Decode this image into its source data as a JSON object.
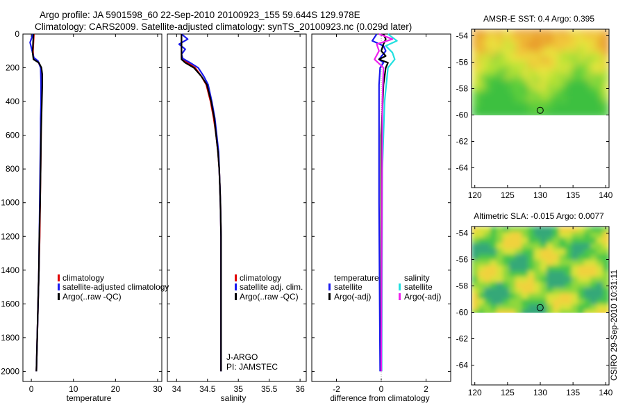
{
  "header": {
    "line1": "Argo profile: JA 5901598_60 22-Sep-2010 20100923_155 59.644S 129.978E",
    "line2": "Climatology: CARS2009. Satellite-adjusted climatology: synTS_20100923.nc (0.029d later)"
  },
  "footer_stamp": "CSIRO 29-Sep-2010 10:31:11",
  "colors": {
    "climatology": "#e00000",
    "satellite": "#1a1aee",
    "argo": "#000000",
    "sal_satellite": "#22e0e0",
    "sal_argo": "#ee22ee"
  },
  "chart_data": [
    {
      "type": "line",
      "name": "temperature-profile",
      "xlabel": "temperature",
      "ylabel": "",
      "xlim": [
        -2,
        31
      ],
      "ylim": [
        2060,
        0
      ],
      "xticks": [
        0,
        10,
        20,
        30
      ],
      "yticks": [
        0,
        200,
        400,
        600,
        800,
        1000,
        1200,
        1400,
        1600,
        1800,
        2000
      ],
      "series": [
        {
          "name": "climatology",
          "color_key": "climatology",
          "points": [
            [
              0.6,
              0
            ],
            [
              0.5,
              50
            ],
            [
              0.4,
              100
            ],
            [
              0.5,
              140
            ],
            [
              1.5,
              160
            ],
            [
              2.3,
              200
            ],
            [
              2.4,
              300
            ],
            [
              2.4,
              400
            ],
            [
              2.3,
              500
            ],
            [
              2.3,
              600
            ],
            [
              2.2,
              800
            ],
            [
              2.1,
              1000
            ],
            [
              2.0,
              1200
            ],
            [
              1.8,
              1400
            ],
            [
              1.6,
              1600
            ],
            [
              1.4,
              1800
            ],
            [
              1.2,
              2000
            ]
          ]
        },
        {
          "name": "satellite-adjusted climatology",
          "color_key": "satellite",
          "points": [
            [
              0.4,
              0
            ],
            [
              -0.3,
              50
            ],
            [
              0.2,
              100
            ],
            [
              0.6,
              140
            ],
            [
              1.6,
              160
            ],
            [
              2.2,
              200
            ],
            [
              2.3,
              300
            ],
            [
              2.3,
              400
            ],
            [
              2.2,
              500
            ],
            [
              2.2,
              600
            ],
            [
              2.1,
              800
            ],
            [
              2.0,
              1000
            ],
            [
              1.9,
              1200
            ],
            [
              1.8,
              1400
            ],
            [
              1.6,
              1600
            ],
            [
              1.4,
              1800
            ],
            [
              1.2,
              2000
            ]
          ]
        },
        {
          "name": "Argo(..raw -QC)",
          "color_key": "argo",
          "points": [
            [
              0.5,
              0
            ],
            [
              0.4,
              60
            ],
            [
              0.3,
              110
            ],
            [
              0.5,
              150
            ],
            [
              1.8,
              170
            ],
            [
              2.4,
              200
            ],
            [
              2.6,
              240
            ],
            [
              2.6,
              300
            ],
            [
              2.5,
              400
            ],
            [
              2.4,
              500
            ],
            [
              2.3,
              600
            ],
            [
              2.2,
              800
            ],
            [
              2.1,
              1000
            ],
            [
              1.9,
              1200
            ],
            [
              1.8,
              1400
            ],
            [
              1.6,
              1600
            ],
            [
              1.4,
              1800
            ],
            [
              1.2,
              2000
            ]
          ]
        }
      ],
      "legend": {
        "placement": "lower-right",
        "entries": [
          "climatology",
          "satellite-adjusted climatology",
          "Argo(..raw -QC)"
        ]
      }
    },
    {
      "type": "line",
      "name": "salinity-profile",
      "xlabel": "salinity",
      "xlim": [
        33.85,
        36.1
      ],
      "ylim": [
        2060,
        0
      ],
      "xticks": [
        34,
        34.5,
        35,
        35.5,
        36
      ],
      "xticklabels": [
        "34",
        "34.5",
        "35",
        "35.5",
        "36"
      ],
      "series": [
        {
          "name": "climatology",
          "color_key": "climatology",
          "points": [
            [
              34.08,
              0
            ],
            [
              34.08,
              80
            ],
            [
              34.08,
              140
            ],
            [
              34.18,
              170
            ],
            [
              34.3,
              200
            ],
            [
              34.4,
              250
            ],
            [
              34.48,
              300
            ],
            [
              34.55,
              400
            ],
            [
              34.6,
              500
            ],
            [
              34.64,
              600
            ],
            [
              34.67,
              700
            ],
            [
              34.69,
              800
            ],
            [
              34.7,
              900
            ],
            [
              34.71,
              1000
            ],
            [
              34.72,
              1200
            ],
            [
              34.72,
              1600
            ],
            [
              34.72,
              2000
            ]
          ]
        },
        {
          "name": "satellite adj. clim.",
          "color_key": "satellite",
          "points": [
            [
              34.08,
              0
            ],
            [
              34.18,
              30
            ],
            [
              34.04,
              60
            ],
            [
              34.14,
              90
            ],
            [
              34.08,
              120
            ],
            [
              34.1,
              145
            ],
            [
              34.22,
              170
            ],
            [
              34.35,
              200
            ],
            [
              34.44,
              250
            ],
            [
              34.51,
              300
            ],
            [
              34.57,
              400
            ],
            [
              34.62,
              500
            ],
            [
              34.65,
              600
            ],
            [
              34.68,
              700
            ],
            [
              34.69,
              800
            ],
            [
              34.7,
              900
            ],
            [
              34.71,
              1000
            ],
            [
              34.72,
              1200
            ],
            [
              34.72,
              1600
            ],
            [
              34.72,
              2000
            ]
          ]
        },
        {
          "name": "Argo(..raw -QC)",
          "color_key": "argo",
          "points": [
            [
              34.08,
              0
            ],
            [
              34.08,
              80
            ],
            [
              34.08,
              150
            ],
            [
              34.14,
              170
            ],
            [
              34.28,
              200
            ],
            [
              34.4,
              250
            ],
            [
              34.49,
              300
            ],
            [
              34.56,
              400
            ],
            [
              34.61,
              500
            ],
            [
              34.64,
              600
            ],
            [
              34.67,
              700
            ],
            [
              34.69,
              800
            ],
            [
              34.7,
              900
            ],
            [
              34.71,
              1000
            ],
            [
              34.72,
              1200
            ],
            [
              34.72,
              1600
            ],
            [
              34.72,
              2000
            ]
          ]
        }
      ],
      "legend": {
        "placement": "lower-right",
        "entries": [
          "climatology",
          "satellite adj. clim.",
          "Argo(..raw -QC)"
        ]
      },
      "annotations": [
        "J-ARGO",
        "PI: JAMSTEC"
      ]
    },
    {
      "type": "line",
      "name": "difference-profile",
      "xlabel": "difference from climatology",
      "xlim": [
        -3.1,
        3.1
      ],
      "ylim": [
        2060,
        0
      ],
      "xticks": [
        -2,
        0,
        2
      ],
      "series": [
        {
          "name": "temperature satellite",
          "color_key": "satellite",
          "points": [
            [
              -0.2,
              0
            ],
            [
              -0.4,
              40
            ],
            [
              0.1,
              70
            ],
            [
              0.2,
              100
            ],
            [
              -0.1,
              150
            ],
            [
              0.1,
              170
            ],
            [
              -0.05,
              200
            ],
            [
              -0.1,
              300
            ],
            [
              -0.1,
              500
            ],
            [
              -0.1,
              1000
            ],
            [
              -0.05,
              2000
            ]
          ]
        },
        {
          "name": "temperature Argo(-adj)",
          "color_key": "argo",
          "points": [
            [
              0.1,
              0
            ],
            [
              0.2,
              30
            ],
            [
              0.1,
              60
            ],
            [
              0,
              100
            ],
            [
              0.2,
              130
            ],
            [
              -0.1,
              150
            ],
            [
              0.3,
              170
            ],
            [
              0.2,
              200
            ],
            [
              0.1,
              300
            ],
            [
              0,
              600
            ],
            [
              0,
              2000
            ]
          ]
        },
        {
          "name": "salinity satellite",
          "color_key": "sal_satellite",
          "points": [
            [
              0.3,
              0
            ],
            [
              0.7,
              40
            ],
            [
              0.2,
              70
            ],
            [
              0.5,
              110
            ],
            [
              0.6,
              150
            ],
            [
              0.3,
              200
            ],
            [
              0.15,
              400
            ],
            [
              0.05,
              800
            ],
            [
              0.02,
              2000
            ]
          ]
        },
        {
          "name": "salinity Argo(-adj)",
          "color_key": "sal_argo",
          "points": [
            [
              -0.1,
              0
            ],
            [
              0.5,
              30
            ],
            [
              -0.2,
              60
            ],
            [
              -0.1,
              100
            ],
            [
              -0.3,
              150
            ],
            [
              0.1,
              200
            ],
            [
              0.05,
              400
            ],
            [
              0,
              2000
            ]
          ]
        }
      ],
      "legend": {
        "placement": "lower-center",
        "temperature_heading": "temperature",
        "salinity_heading": "salinity",
        "entries": [
          "satellite",
          "Argo(-adj)",
          "satellite",
          "Argo(-adj)"
        ]
      }
    },
    {
      "type": "heatmap",
      "name": "sst-map",
      "title": "AMSR-E SST: 0.4 Argo: 0.395",
      "xlim": [
        119.5,
        140.5
      ],
      "ylim": [
        -65.5,
        -53.5
      ],
      "xticks": [
        120,
        125,
        130,
        135,
        140
      ],
      "yticks": [
        -54,
        -56,
        -58,
        -60,
        -62,
        -64
      ],
      "data_lat_range": [
        -60,
        -53.5
      ],
      "float_position": [
        129.978,
        -59.644
      ]
    },
    {
      "type": "heatmap",
      "name": "sla-map",
      "title": "Altimetric SLA: -0.015 Argo: 0.0077",
      "xlim": [
        119.5,
        140.5
      ],
      "ylim": [
        -65.5,
        -53.5
      ],
      "xticks": [
        120,
        125,
        130,
        135,
        140
      ],
      "yticks": [
        -54,
        -56,
        -58,
        -60,
        -62,
        -64
      ],
      "data_lat_range": [
        -60,
        -53.5
      ],
      "float_position": [
        129.978,
        -59.644
      ]
    }
  ]
}
